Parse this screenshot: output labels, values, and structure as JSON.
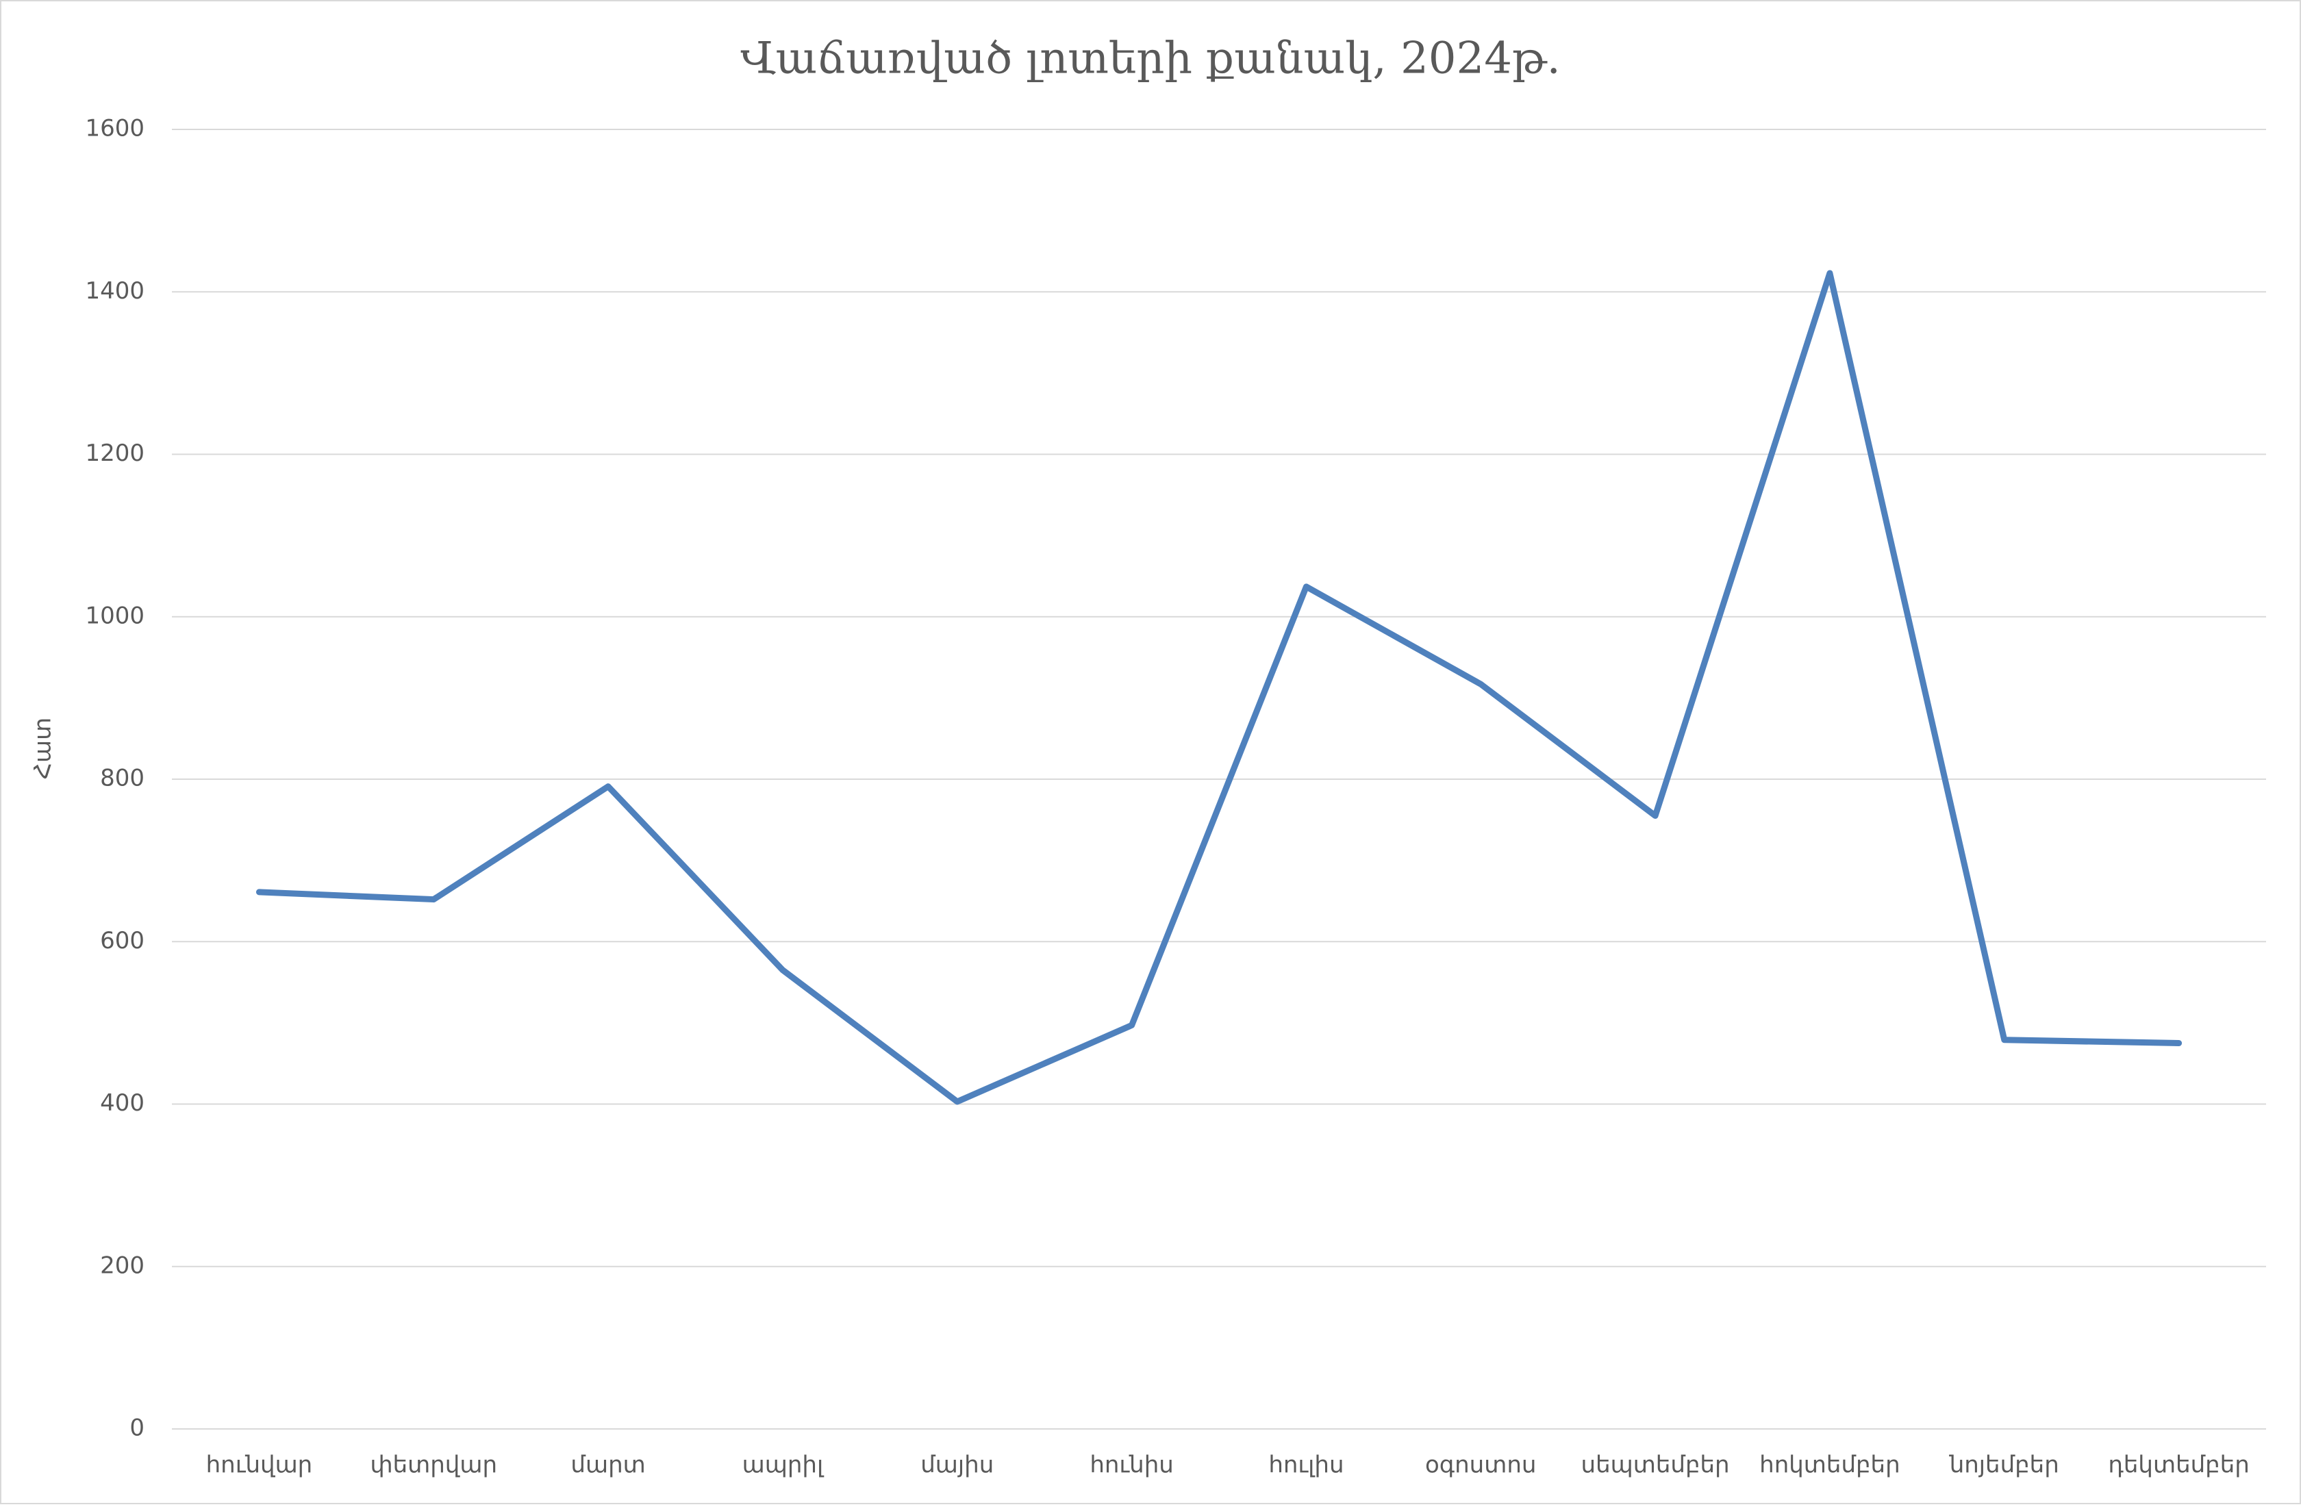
{
  "chart_data": {
    "type": "line",
    "title": "Վաճառված լոտերի քանակ, 2024թ.",
    "y_label": "Հատ",
    "categories": [
      "հունվար",
      "փետրվար",
      "մարտ",
      "ապրիլ",
      "մայիս",
      "հունիս",
      "հուլիս",
      "օգոստոս",
      "սեպտեմբեր",
      "հոկտեմբեր",
      "նոյեմբեր",
      "դեկտեմբեր"
    ],
    "series": [
      {
        "color": "#4f81bd",
        "values": [
          661,
          652,
          791,
          565,
          403,
          497,
          1037,
          917,
          755,
          1423,
          479,
          475
        ]
      }
    ],
    "ylim": [
      0,
      1600
    ],
    "yticks": [
      0,
      200,
      400,
      600,
      800,
      1000,
      1200,
      1400,
      1600
    ],
    "grid": true
  }
}
